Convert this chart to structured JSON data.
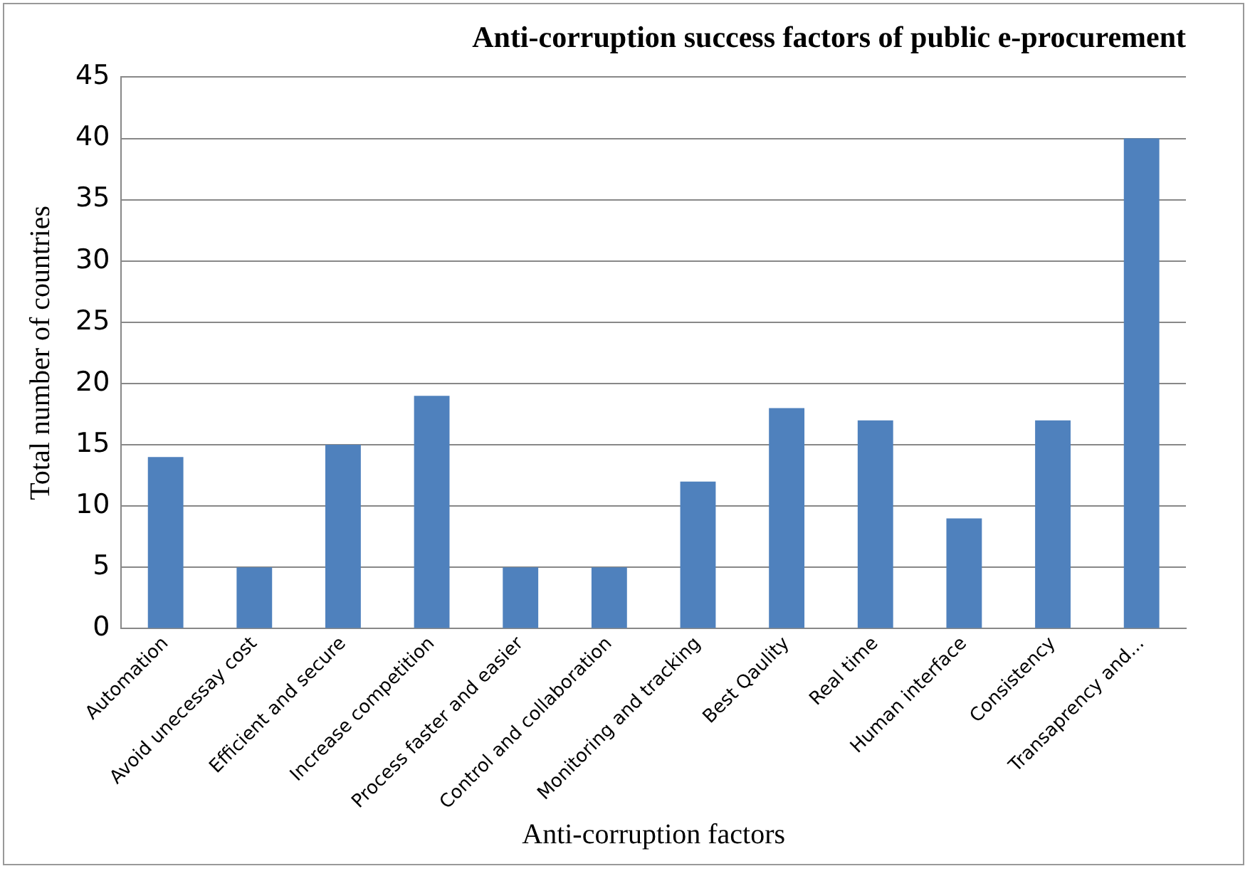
{
  "chart_data": {
    "type": "bar",
    "title": "Anti-corruption success factors of public e-procurement",
    "xlabel": "Anti-corruption factors",
    "ylabel": "Total number of countries",
    "categories": [
      "Automation",
      "Avoid unecessay cost",
      "Efficient and secure",
      "Increase competition",
      "Process faster and easier",
      "Control and collaboration",
      "Monitoring and tracking",
      "Best Qaulity",
      "Real time",
      "Human interface",
      "Consistency",
      "Transaprency and..."
    ],
    "values": [
      14,
      5,
      15,
      19,
      5,
      5,
      12,
      18,
      17,
      9,
      17,
      40
    ],
    "color": "#4f81bd",
    "ylim": [
      0,
      45
    ],
    "yticks": [
      0,
      5,
      10,
      15,
      20,
      25,
      30,
      35,
      40,
      45
    ],
    "grid": "y",
    "legend": false
  }
}
